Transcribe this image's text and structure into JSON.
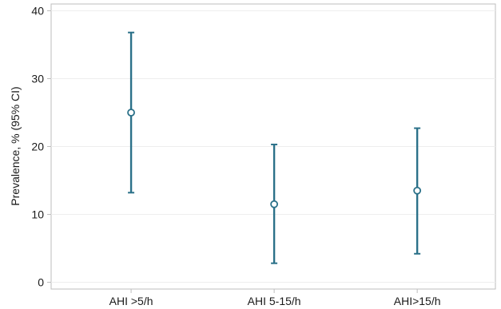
{
  "chart_data": {
    "type": "errorbar",
    "title": "",
    "xlabel": "",
    "ylabel": "Prevalence, % (95% CI)",
    "ylim": [
      -1,
      41
    ],
    "yticks": [
      0,
      10,
      20,
      30,
      40
    ],
    "grid": "horizontal",
    "categories": [
      "AHI >5/h",
      "AHI 5-15/h",
      "AHI>15/h"
    ],
    "series": [
      {
        "values": [
          25,
          11.5,
          13.5
        ],
        "lower": [
          13.2,
          2.8,
          4.2
        ],
        "upper": [
          36.8,
          20.3,
          22.7
        ]
      }
    ],
    "colors": {
      "bar": "#2b7189",
      "grid": "#eeeeee",
      "axis": "#bdbdbd"
    }
  }
}
